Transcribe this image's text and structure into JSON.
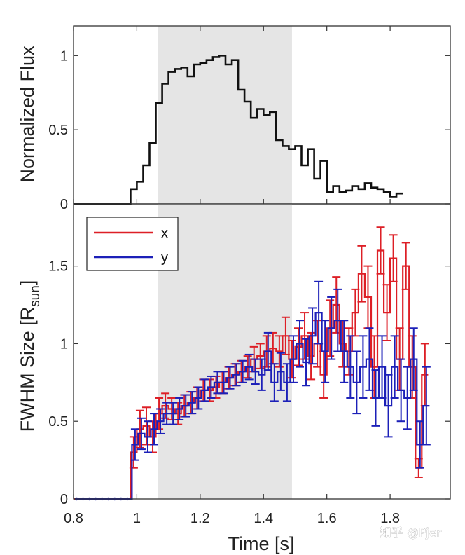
{
  "watermark": "知乎 @Pjer",
  "colors": {
    "flux": "#111111",
    "x": "#dd1f26",
    "y": "#1c20b8",
    "shade": "#e5e5e5",
    "axis": "#333333"
  },
  "chart_data": [
    {
      "type": "line",
      "id": "flux",
      "title": "",
      "xlabel": "",
      "ylabel": "Normalized Flux",
      "xlim": [
        0.8,
        1.99
      ],
      "ylim": [
        0,
        1.2
      ],
      "yticks": [
        0,
        0.5,
        1
      ],
      "ytick_labels": [
        "0",
        "0.5",
        "1"
      ],
      "shaded_region": [
        1.066,
        1.49
      ],
      "step": 0.02,
      "x_start": 0.8,
      "values": [
        0,
        0,
        0,
        0,
        0,
        0,
        0,
        0,
        0,
        0.1,
        0.15,
        0.26,
        0.41,
        0.68,
        0.81,
        0.89,
        0.91,
        0.92,
        0.86,
        0.94,
        0.95,
        0.97,
        0.99,
        1.0,
        0.94,
        0.97,
        0.77,
        0.69,
        0.58,
        0.64,
        0.6,
        0.62,
        0.43,
        0.39,
        0.37,
        0.39,
        0.26,
        0.37,
        0.17,
        0.29,
        0.08,
        0.12,
        0.08,
        0.09,
        0.12,
        0.1,
        0.14,
        0.11,
        0.1,
        0.08,
        0.05,
        0.07
      ]
    },
    {
      "type": "line",
      "id": "fwhm",
      "title": "",
      "xlabel": "Time [s]",
      "ylabel_main": "FWHM Size [R",
      "ylabel_sub": "sun",
      "ylabel_close": "]",
      "xlim": [
        0.8,
        1.99
      ],
      "ylim": [
        0,
        1.9
      ],
      "xticks": [
        0.8,
        1,
        1.2,
        1.4,
        1.6,
        1.8
      ],
      "xtick_labels": [
        "0.8",
        "1",
        "1.2",
        "1.4",
        "1.6",
        "1.8"
      ],
      "yticks": [
        0,
        0.5,
        1,
        1.5
      ],
      "ytick_labels": [
        "0",
        "0.5",
        "1",
        "1.5"
      ],
      "shaded_region": [
        1.066,
        1.49
      ],
      "legend": {
        "placement": "top-left",
        "entries": [
          "x",
          "y"
        ]
      },
      "step": 0.02,
      "x_start": 0.8,
      "series": [
        {
          "name": "x",
          "values": [
            0,
            0,
            0,
            0,
            0,
            0,
            0,
            0,
            0,
            0.3,
            0.45,
            0.47,
            0.4,
            0.55,
            0.6,
            0.58,
            0.55,
            0.6,
            0.62,
            0.65,
            0.7,
            0.7,
            0.72,
            0.75,
            0.78,
            0.8,
            0.82,
            0.85,
            0.9,
            0.92,
            0.95,
            0.97,
            0.95,
            1.05,
            0.9,
            0.98,
            1.05,
            0.92,
            1.0,
            0.8,
            1.1,
            1.25,
            1.0,
            0.95,
            1.2,
            1.45,
            1.3,
            0.85,
            1.6,
            1.2,
            1.55,
            0.9,
            1.5,
            0.85,
            0.2,
            0.8
          ],
          "errors": [
            0,
            0,
            0,
            0,
            0,
            0,
            0,
            0,
            0,
            0.1,
            0.12,
            0.12,
            0.1,
            0.1,
            0.08,
            0.07,
            0.07,
            0.07,
            0.07,
            0.07,
            0.07,
            0.07,
            0.07,
            0.07,
            0.07,
            0.07,
            0.07,
            0.07,
            0.08,
            0.08,
            0.1,
            0.1,
            0.1,
            0.12,
            0.12,
            0.12,
            0.15,
            0.15,
            0.15,
            0.15,
            0.18,
            0.18,
            0.15,
            0.15,
            0.15,
            0.18,
            0.2,
            0.2,
            0.15,
            0.18,
            0.15,
            0.2,
            0.15,
            0.2,
            0.06,
            0.2
          ]
        },
        {
          "name": "y",
          "values": [
            0,
            0,
            0,
            0,
            0,
            0,
            0,
            0,
            0,
            0.35,
            0.42,
            0.4,
            0.45,
            0.5,
            0.55,
            0.55,
            0.58,
            0.6,
            0.62,
            0.65,
            0.7,
            0.72,
            0.75,
            0.75,
            0.78,
            0.8,
            0.82,
            0.85,
            0.82,
            0.8,
            0.95,
            0.75,
            0.82,
            0.75,
            0.9,
            1.0,
            0.88,
            1.05,
            1.2,
            0.95,
            1.1,
            1.15,
            0.95,
            0.85,
            0.75,
            0.85,
            0.9,
            0.65,
            0.85,
            0.6,
            0.85,
            0.7,
            0.65,
            0.9,
            0.35,
            0.6
          ],
          "errors": [
            0,
            0,
            0,
            0,
            0,
            0,
            0,
            0,
            0,
            0.1,
            0.1,
            0.1,
            0.1,
            0.08,
            0.07,
            0.07,
            0.07,
            0.07,
            0.07,
            0.07,
            0.07,
            0.07,
            0.07,
            0.07,
            0.07,
            0.07,
            0.07,
            0.08,
            0.08,
            0.1,
            0.12,
            0.12,
            0.12,
            0.12,
            0.15,
            0.15,
            0.15,
            0.18,
            0.2,
            0.2,
            0.2,
            0.2,
            0.2,
            0.2,
            0.2,
            0.2,
            0.2,
            0.18,
            0.2,
            0.2,
            0.2,
            0.2,
            0.2,
            0.2,
            0.15,
            0.25
          ]
        }
      ]
    }
  ]
}
